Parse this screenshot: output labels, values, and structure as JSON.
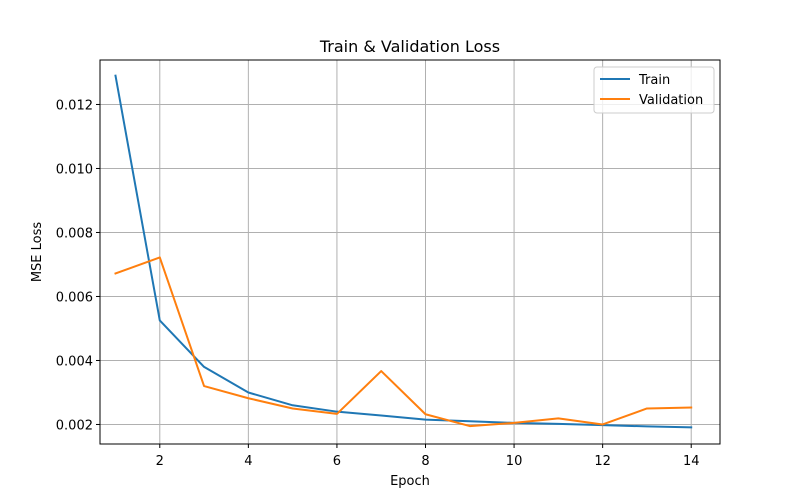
{
  "chart_data": {
    "type": "line",
    "title": "Train & Validation Loss",
    "xlabel": "Epoch",
    "ylabel": "MSE Loss",
    "x": [
      1,
      2,
      3,
      4,
      5,
      6,
      7,
      8,
      9,
      10,
      11,
      12,
      13,
      14
    ],
    "xlim": [
      0.65,
      14.65
    ],
    "ylim": [
      0.00139,
      0.01339
    ],
    "xticks": [
      2,
      4,
      6,
      8,
      10,
      12,
      14
    ],
    "xtick_labels": [
      "2",
      "4",
      "6",
      "8",
      "10",
      "12",
      "14"
    ],
    "yticks": [
      0.002,
      0.004,
      0.006,
      0.008,
      0.01,
      0.012
    ],
    "ytick_labels": [
      "0.002",
      "0.004",
      "0.006",
      "0.008",
      "0.010",
      "0.012"
    ],
    "grid": true,
    "legend_position": "top-right",
    "series": [
      {
        "name": "Train",
        "color": "#1f77b4",
        "values": [
          0.0129,
          0.00525,
          0.0038,
          0.003,
          0.0026,
          0.0024,
          0.00228,
          0.00215,
          0.0021,
          0.00205,
          0.00202,
          0.00198,
          0.00194,
          0.00191
        ]
      },
      {
        "name": "Validation",
        "color": "#ff7f0e",
        "values": [
          0.00672,
          0.00722,
          0.0032,
          0.00282,
          0.0025,
          0.00233,
          0.00367,
          0.00232,
          0.00195,
          0.00205,
          0.00219,
          0.002,
          0.0025,
          0.00253
        ]
      }
    ]
  }
}
